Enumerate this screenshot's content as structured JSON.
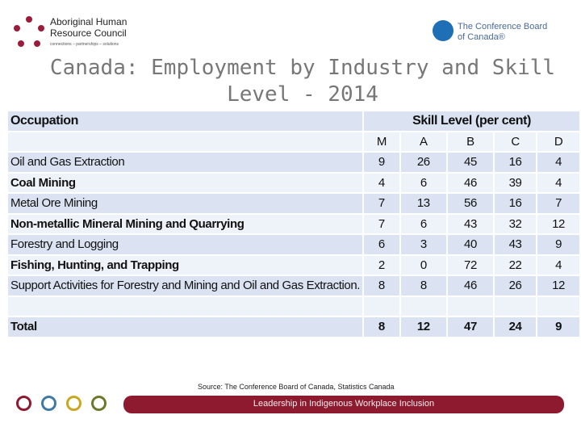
{
  "logos": {
    "left_name": "Aboriginal Human Resource Council",
    "left_line1": "Aboriginal Human",
    "left_line2": "Resource Council",
    "left_tagline": "connections – partnerships – solutions",
    "right_line1": "The Conference Board",
    "right_line2": "of Canada®"
  },
  "title": "Canada: Employment by Industry and Skill Level - 2014",
  "table": {
    "header_occupation": "Occupation",
    "header_skill": "Skill Level (per cent)",
    "levels": [
      "M",
      "A",
      "B",
      "C",
      "D"
    ],
    "rows": [
      {
        "label": "Oil and Gas Extraction",
        "values": [
          "9",
          "26",
          "45",
          "16",
          "4"
        ]
      },
      {
        "label": "Coal Mining",
        "values": [
          "4",
          "6",
          "46",
          "39",
          "4"
        ]
      },
      {
        "label": "Metal Ore Mining",
        "values": [
          "7",
          "13",
          "56",
          "16",
          "7"
        ]
      },
      {
        "label": "Non-metallic Mineral Mining and Quarrying",
        "values": [
          "7",
          "6",
          "43",
          "32",
          "12"
        ]
      },
      {
        "label": "Forestry and Logging",
        "values": [
          "6",
          "3",
          "40",
          "43",
          "9"
        ]
      },
      {
        "label": "Fishing, Hunting, and Trapping",
        "values": [
          "2",
          "0",
          "72",
          "22",
          "4"
        ]
      },
      {
        "label": "Support Activities for Forestry and Mining and Oil and Gas Extraction.",
        "values": [
          "8",
          "8",
          "46",
          "26",
          "12"
        ]
      }
    ],
    "total": {
      "label": "Total",
      "values": [
        "8",
        "12",
        "47",
        "24",
        "9"
      ]
    }
  },
  "footer": {
    "source": "Source: The Conference Board of Canada, Statistics Canada",
    "tagline": "Leadership in Indigenous Workplace Inclusion",
    "circle_colors": [
      "#8e1a30",
      "#3f7aa5",
      "#c9a81f",
      "#6b7a2a"
    ],
    "bar_color": "#8e1a30"
  }
}
